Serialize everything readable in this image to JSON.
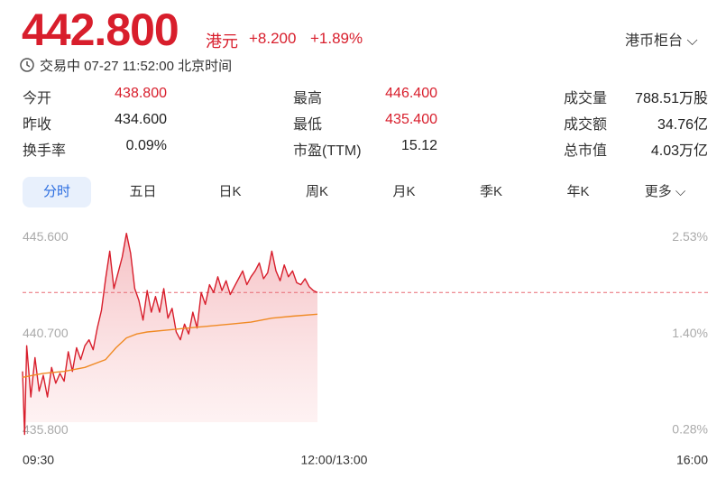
{
  "header": {
    "price": "442.800",
    "currency": "港元",
    "change": "+8.200",
    "change_pct": "+1.89%",
    "counter": "港币柜台",
    "status": "交易中 07-27 11:52:00 北京时间"
  },
  "stats": {
    "rows": [
      [
        [
          "今开",
          "438.800"
        ],
        [
          "最高",
          "446.400"
        ],
        [
          "成交量",
          "788.51万股"
        ]
      ],
      [
        [
          "昨收",
          "434.600"
        ],
        [
          "最低",
          "435.400"
        ],
        [
          "成交额",
          "34.76亿"
        ]
      ],
      [
        [
          "换手率",
          "0.09%"
        ],
        [
          "市盈(TTM)",
          "15.12"
        ],
        [
          "总市值",
          "4.03万亿"
        ]
      ]
    ]
  },
  "tabs": [
    "分时",
    "五日",
    "日K",
    "周K",
    "月K",
    "季K",
    "年K",
    "更多"
  ],
  "chart_data": {
    "type": "line",
    "xlim": [
      0,
      330
    ],
    "xticks": [
      {
        "value": 0,
        "label": "09:30"
      },
      {
        "value": 150,
        "label": "12:00/13:00"
      },
      {
        "value": 330,
        "label": "16:00"
      }
    ],
    "ylim": [
      435.4,
      446.2
    ],
    "yticks": [
      {
        "value": 445.6,
        "label": "445.600"
      },
      {
        "value": 440.7,
        "label": "440.700"
      },
      {
        "value": 435.8,
        "label": "435.800"
      }
    ],
    "y2lim": [
      0.184,
      2.669
    ],
    "y2ticks": [
      {
        "value": 2.53,
        "label": "2.53%"
      },
      {
        "value": 1.4,
        "label": "1.40%"
      },
      {
        "value": 0.28,
        "label": "0.28%"
      }
    ],
    "series": [
      {
        "color": "#d81e2c",
        "x": [
          0,
          1,
          2,
          4,
          6,
          8,
          10,
          12,
          14,
          16,
          18,
          20,
          22,
          24,
          26,
          28,
          30,
          32,
          34,
          36,
          38,
          40,
          42,
          44,
          46,
          48,
          50,
          52,
          54,
          56,
          58,
          60,
          62,
          64,
          66,
          68,
          70,
          72,
          74,
          76,
          78,
          80,
          82,
          84,
          86,
          88,
          90,
          92,
          94,
          96,
          98,
          100,
          102,
          104,
          106,
          108,
          110,
          112,
          114,
          116,
          118,
          120,
          122,
          124,
          126,
          128,
          130,
          132,
          134,
          136,
          138,
          140,
          142
        ],
        "values": [
          438.8,
          435.6,
          440.1,
          437.5,
          439.5,
          437.8,
          438.6,
          437.5,
          439.0,
          438.2,
          438.7,
          438.3,
          439.8,
          438.8,
          440.0,
          439.4,
          440.1,
          440.4,
          439.9,
          441.0,
          441.9,
          443.5,
          444.9,
          443.0,
          443.8,
          444.6,
          445.8,
          444.8,
          443.0,
          442.4,
          441.4,
          442.9,
          441.8,
          442.6,
          441.8,
          443.0,
          441.5,
          442.0,
          440.8,
          440.4,
          441.2,
          440.7,
          441.8,
          441.0,
          442.8,
          442.2,
          443.2,
          442.8,
          443.6,
          442.9,
          443.4,
          442.7,
          443.1,
          443.5,
          443.9,
          443.2,
          443.6,
          443.9,
          444.3,
          443.5,
          443.8,
          444.9,
          443.9,
          443.4,
          444.2,
          443.6,
          443.9,
          443.3,
          443.2,
          443.5,
          443.1,
          442.9,
          442.8
        ]
      },
      {
        "color": "#f08a24",
        "x": [
          0,
          5,
          10,
          20,
          30,
          40,
          45,
          50,
          55,
          60,
          70,
          80,
          90,
          100,
          110,
          120,
          130,
          142
        ],
        "values": [
          438.5,
          438.6,
          438.7,
          438.8,
          439.0,
          439.4,
          440.0,
          440.5,
          440.7,
          440.8,
          440.9,
          441.0,
          441.1,
          441.2,
          441.3,
          441.5,
          441.6,
          441.7
        ]
      }
    ]
  }
}
